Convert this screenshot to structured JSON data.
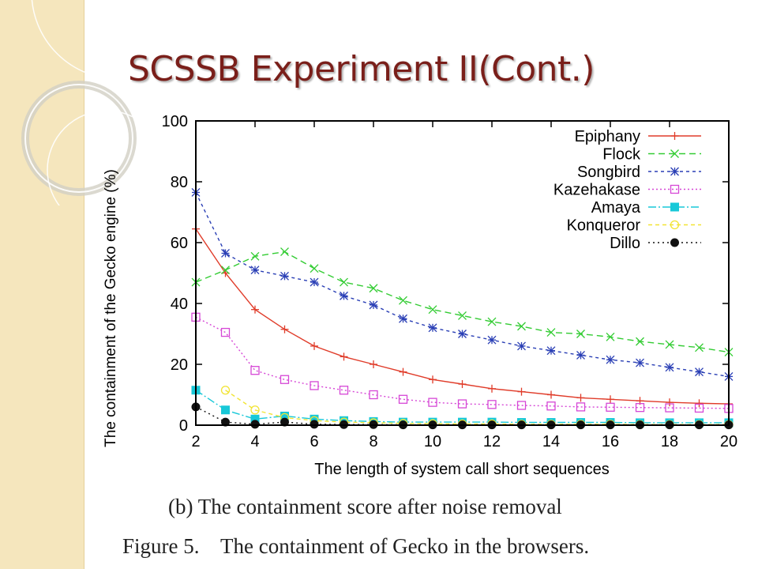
{
  "slide": {
    "title": "SCSSB Experiment II(Cont.)",
    "caption": "(b)  The  containment  score  after  noise  removal",
    "figure_caption": "Figure 5.    The containment of Gecko in the browsers."
  },
  "chart_data": {
    "type": "line",
    "xlabel": "The length of system call short sequences",
    "ylabel": "The containment of the Gecko engine (%)",
    "xlim": [
      2,
      20
    ],
    "ylim": [
      0,
      100
    ],
    "xticks": [
      2,
      4,
      6,
      8,
      10,
      12,
      14,
      16,
      18,
      20
    ],
    "yticks": [
      0,
      20,
      40,
      60,
      80,
      100
    ],
    "grid": false,
    "legend_position": "top-right",
    "x": [
      2,
      3,
      4,
      5,
      6,
      7,
      8,
      9,
      10,
      11,
      12,
      13,
      14,
      15,
      16,
      17,
      18,
      19,
      20
    ],
    "series": [
      {
        "name": "Epiphany",
        "color": "#e03c2a",
        "dash": "",
        "marker": "plus",
        "values": [
          64.5,
          50,
          38,
          31.5,
          26,
          22.5,
          20,
          17.5,
          15,
          13.5,
          12,
          11,
          10,
          9,
          8.5,
          8,
          7.5,
          7.2,
          7
        ]
      },
      {
        "name": "Flock",
        "color": "#33cc33",
        "dash": "8,5",
        "marker": "cross",
        "values": [
          47,
          51,
          55.5,
          57,
          51.5,
          47,
          45,
          41,
          38,
          36,
          34,
          32.5,
          30.5,
          30,
          29,
          27.5,
          26.5,
          25.5,
          24
        ]
      },
      {
        "name": "Songbird",
        "color": "#2a3fb5",
        "dash": "4,4",
        "marker": "star",
        "values": [
          76.5,
          56.5,
          51,
          49,
          47,
          42.5,
          39.5,
          35,
          32,
          30,
          28,
          26,
          24.5,
          23,
          21.5,
          20.5,
          19,
          17.5,
          16
        ]
      },
      {
        "name": "Kazehakase",
        "color": "#d647d6",
        "dash": "2,3",
        "marker": "square-open",
        "values": [
          35.5,
          30.5,
          18,
          15,
          13,
          11.5,
          10,
          8.5,
          7.5,
          7,
          6.8,
          6.5,
          6.3,
          6,
          5.9,
          5.8,
          5.7,
          5.6,
          5.5
        ]
      },
      {
        "name": "Amaya",
        "color": "#18c8d8",
        "dash": "10,3,2,3",
        "marker": "square-filled",
        "values": [
          11.5,
          5,
          2,
          3,
          2,
          1.5,
          1.2,
          1,
          1,
          1,
          1,
          0.9,
          0.9,
          0.9,
          0.9,
          0.8,
          0.8,
          0.8,
          0.8
        ]
      },
      {
        "name": "Konqueror",
        "color": "#f2e433",
        "dash": "5,4",
        "marker": "circle-open",
        "values": [
          null,
          11.5,
          5,
          2.5,
          1.5,
          1,
          0.8,
          0.6,
          0.5,
          0.4,
          0.4,
          0.3,
          0.3,
          0.3,
          0.3,
          0.2,
          0.2,
          0.2,
          0.2
        ]
      },
      {
        "name": "Dillo",
        "color": "#111111",
        "dash": "2,4",
        "marker": "circle-filled",
        "values": [
          6,
          1,
          0.3,
          1,
          0.3,
          0.2,
          0.2,
          0.1,
          0.1,
          0.1,
          0.1,
          0.1,
          0.1,
          0.1,
          0.1,
          0.1,
          0.1,
          0.1,
          0.1
        ]
      }
    ]
  }
}
